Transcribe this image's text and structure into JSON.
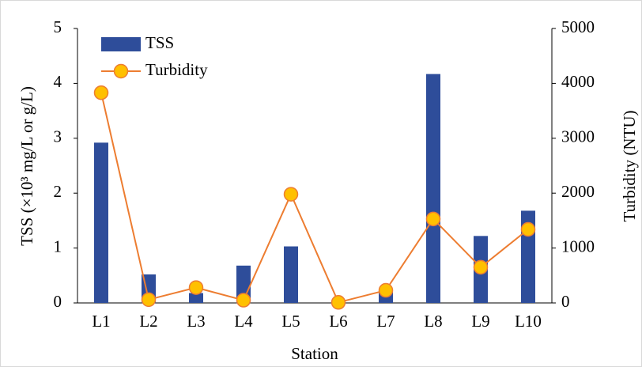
{
  "chart_data": {
    "type": "bar",
    "xlabel": "Station",
    "ylabel": "TSS (×10³ mg/L  or g/L)",
    "y2label": "Turbidity (NTU)",
    "categories": [
      "L1",
      "L2",
      "L3",
      "L4",
      "L5",
      "L6",
      "L7",
      "L8",
      "L9",
      "L10"
    ],
    "series": [
      {
        "name": "TSS",
        "type": "bar",
        "color": "#2e4d9a",
        "values": [
          2.92,
          0.52,
          0.18,
          0.68,
          1.03,
          0.01,
          0.2,
          4.17,
          1.22,
          1.68
        ]
      },
      {
        "name": "Turbidity",
        "type": "line",
        "axis": "y2",
        "color": "#ed7d31",
        "marker_color": "#ffc000",
        "values": [
          3830,
          60,
          280,
          50,
          1980,
          10,
          230,
          1530,
          650,
          1340
        ]
      }
    ],
    "ylim": [
      0,
      5
    ],
    "yticks": [
      0,
      1,
      2,
      3,
      4,
      5
    ],
    "y2lim": [
      0,
      5000
    ],
    "y2ticks": [
      0,
      1000,
      2000,
      3000,
      4000,
      5000
    ],
    "legend": "upper left"
  }
}
